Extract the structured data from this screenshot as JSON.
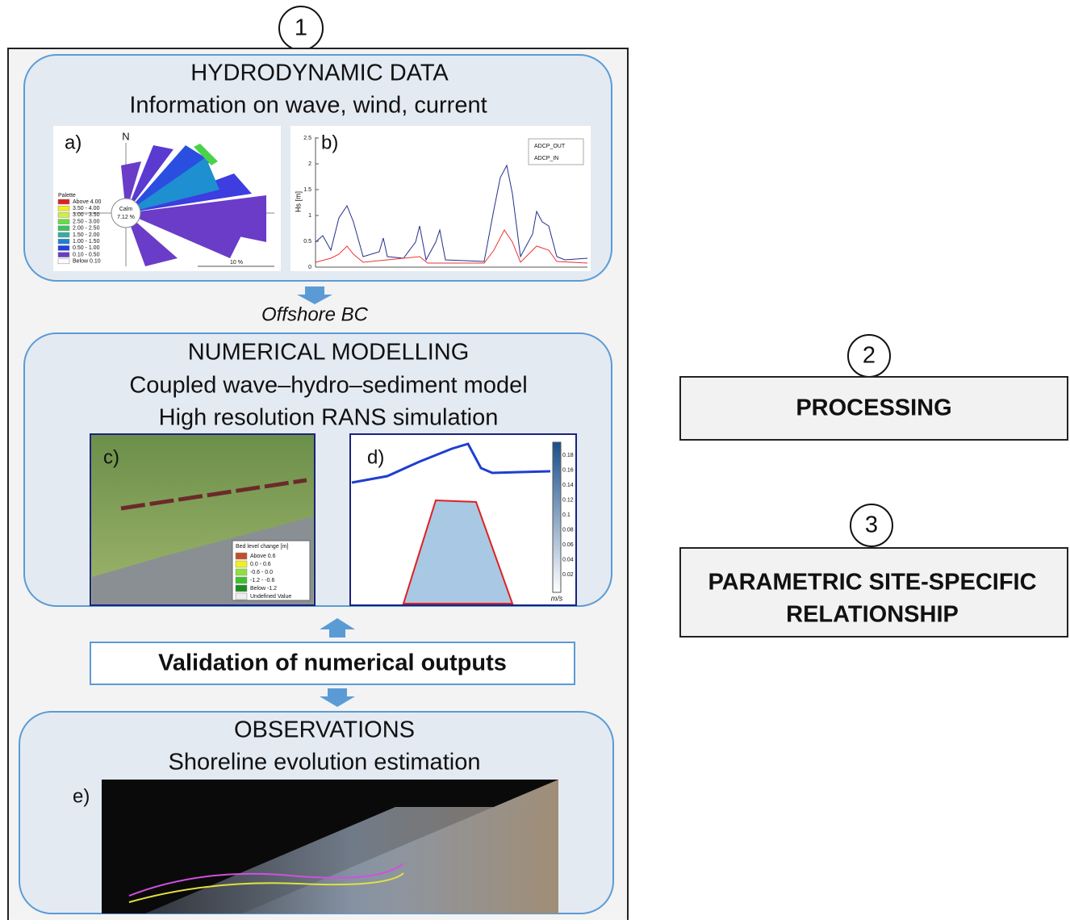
{
  "steps": {
    "one": "1",
    "two": "2",
    "three": "3"
  },
  "hydrodynamic": {
    "title": "HYDRODYNAMIC DATA",
    "subtitle": "Information on wave, wind, current",
    "panel_a": {
      "label": "a)",
      "north": "N",
      "palette_title": "Palette",
      "legend": [
        "Above 4.00",
        "3.50 - 4.00",
        "3.00 - 3.50",
        "2.50 - 3.00",
        "2.00 - 2.50",
        "1.50 - 2.00",
        "1.00 - 1.50",
        "0.50 - 1.00",
        "0.10 - 0.50",
        "Below 0.10"
      ],
      "calm": "Calm",
      "calm_value": "7.12 %",
      "scale": "10 %"
    },
    "panel_b": {
      "label": "b)",
      "y_label": "Hs [m]",
      "yticks": [
        "0",
        "0.5",
        "1",
        "1.5",
        "2",
        "2.5"
      ],
      "series": [
        "ADCP_OUT",
        "ADCP_IN"
      ]
    }
  },
  "arrow_label": "Offshore BC",
  "numerical": {
    "title": "NUMERICAL MODELLING",
    "line1": "Coupled wave–hydro–sediment model",
    "line2": "High resolution RANS simulation",
    "panel_c": {
      "label": "c)",
      "legend_title": "Bed level change [m]",
      "legend": [
        "Above  0.6",
        "0.0 -  0.6",
        "-0.6 -  0.0",
        "-1.2 - -0.6",
        "Below -1.2",
        "Undefined Value"
      ]
    },
    "panel_d": {
      "label": "d)",
      "colorbar": [
        "0.18",
        "0.16",
        "0.14",
        "0.12",
        "0.1",
        "0.08",
        "0.06",
        "0.04",
        "0.02"
      ],
      "unit": "m/s"
    }
  },
  "validation": "Validation of numerical outputs",
  "observations": {
    "title": "OBSERVATIONS",
    "subtitle": "Shoreline evolution estimation",
    "panel_e": {
      "label": "e)"
    }
  },
  "processing": "PROCESSING",
  "parametric": [
    "PARAMETRIC SITE-SPECIFIC",
    "RELATIONSHIP"
  ]
}
